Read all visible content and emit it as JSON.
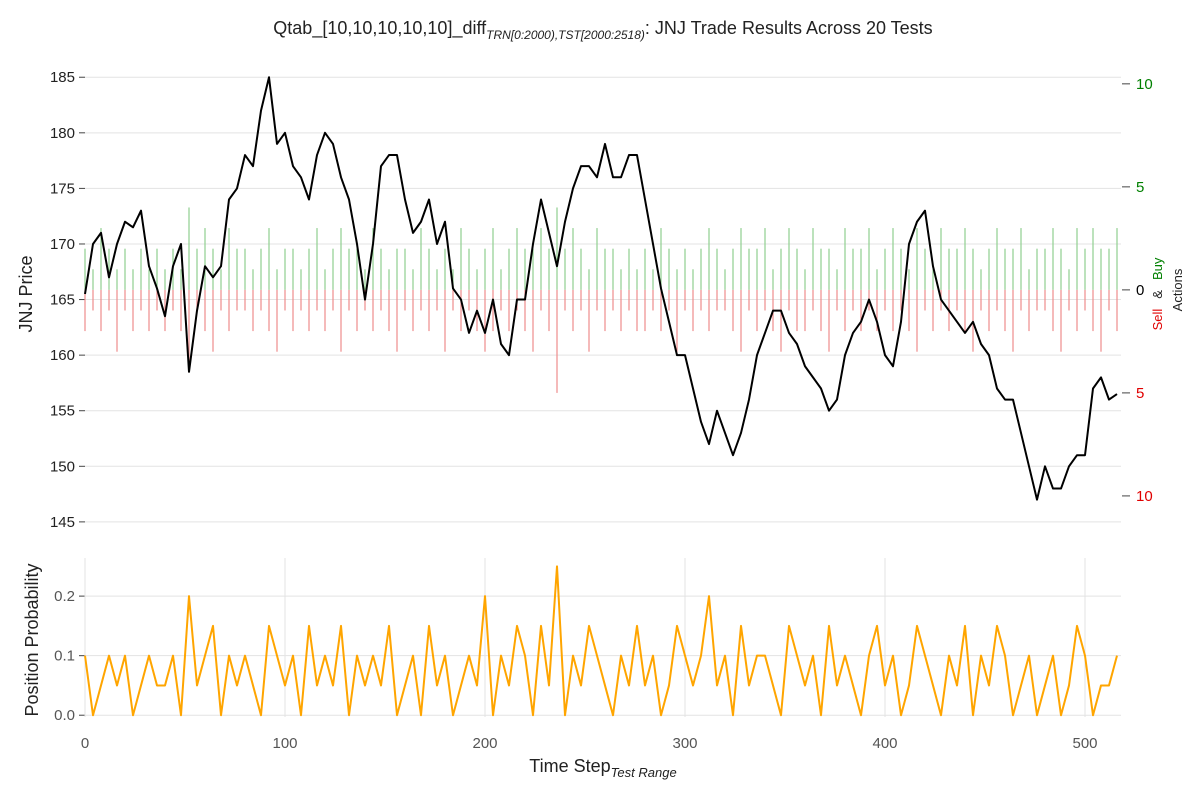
{
  "chart_data": [
    {
      "type": "line",
      "title": {
        "main": "Qtab_[10,10,10,10,10]_diff",
        "sub": "TRN[0:2000),TST[2000:2518)",
        "tail": ": JNJ Trade Results Across 20 Tests"
      },
      "ylabel": "JNJ Price",
      "y2label": {
        "sell": "Sell",
        "and": "&",
        "buy": "Buy",
        "actions": "Actions"
      },
      "xlim": [
        0,
        518
      ],
      "ylim": [
        144,
        187
      ],
      "yticks": [
        145,
        150,
        155,
        160,
        165,
        170,
        175,
        180,
        185
      ],
      "y2lim": [
        -11.8,
        11.4
      ],
      "y2ticks": [
        {
          "value": -10,
          "label": "10"
        },
        {
          "value": -5,
          "label": "5"
        },
        0,
        5,
        10
      ],
      "y2tick_colors": [
        "#e00000",
        "#e00000",
        "#000000",
        "#008000",
        "#008000"
      ],
      "grid": true,
      "x": [
        0,
        4,
        8,
        12,
        16,
        20,
        24,
        28,
        32,
        36,
        40,
        44,
        48,
        52,
        56,
        60,
        64,
        68,
        72,
        76,
        80,
        84,
        88,
        92,
        96,
        100,
        104,
        108,
        112,
        116,
        120,
        124,
        128,
        132,
        136,
        140,
        144,
        148,
        152,
        156,
        160,
        164,
        168,
        172,
        176,
        180,
        184,
        188,
        192,
        196,
        200,
        204,
        208,
        212,
        216,
        220,
        224,
        228,
        232,
        236,
        240,
        244,
        248,
        252,
        256,
        260,
        264,
        268,
        272,
        276,
        280,
        284,
        288,
        292,
        296,
        300,
        304,
        308,
        312,
        316,
        320,
        324,
        328,
        332,
        336,
        340,
        344,
        348,
        352,
        356,
        360,
        364,
        368,
        372,
        376,
        380,
        384,
        388,
        392,
        396,
        400,
        404,
        408,
        412,
        416,
        420,
        424,
        428,
        432,
        436,
        440,
        444,
        448,
        452,
        456,
        460,
        464,
        468,
        472,
        476,
        480,
        484,
        488,
        492,
        496,
        500,
        504,
        508,
        512,
        516
      ],
      "series": [
        {
          "color": "#000000",
          "values": [
            165.5,
            170,
            171,
            167,
            170,
            172,
            171.5,
            173,
            168,
            166,
            163.5,
            168,
            170,
            158.5,
            164,
            168,
            167,
            168,
            174,
            175,
            178,
            177,
            182,
            185,
            179,
            180,
            177,
            176,
            174,
            178,
            180,
            179,
            176,
            174,
            170,
            165,
            170,
            177,
            178,
            178,
            174,
            171,
            172,
            174,
            170,
            172,
            166,
            165,
            162,
            164,
            162,
            165,
            161,
            160,
            165,
            165,
            170,
            174,
            171,
            168,
            172,
            175,
            177,
            177,
            176,
            179,
            176,
            176,
            178,
            178,
            174,
            170,
            166,
            163,
            160,
            160,
            157,
            154,
            152,
            155,
            153,
            151,
            153,
            156,
            160,
            162,
            164,
            164,
            162,
            161,
            159,
            158,
            157,
            155,
            156,
            160,
            162,
            163,
            165,
            163,
            160,
            159,
            163,
            170,
            172,
            173,
            168,
            165,
            164,
            163,
            162,
            163,
            161,
            160,
            157,
            156,
            156,
            153,
            150,
            147,
            150,
            148,
            148,
            150,
            151,
            151,
            157,
            158,
            156,
            156.5
          ]
        },
        {
          "type": "bar",
          "axis": "y2",
          "color": "#8fcf8f",
          "values": [
            2,
            1,
            3,
            2,
            1,
            2,
            1,
            2,
            1,
            2,
            1,
            2,
            1,
            4,
            2,
            3,
            2,
            1,
            3,
            2,
            2,
            1,
            2,
            3,
            1,
            2,
            2,
            1,
            2,
            3,
            1,
            2,
            3,
            2,
            2,
            1,
            3,
            2,
            1,
            2,
            2,
            1,
            3,
            2,
            1,
            2,
            1,
            3,
            2,
            1,
            2,
            3,
            1,
            2,
            3,
            2,
            2,
            3,
            2,
            4,
            2,
            3,
            2,
            1,
            3,
            2,
            2,
            1,
            2,
            1,
            2,
            1,
            3,
            2,
            1,
            2,
            1,
            2,
            3,
            2,
            1,
            2,
            3,
            2,
            2,
            3,
            1,
            2,
            3,
            2,
            1,
            3,
            2,
            2,
            1,
            3,
            2,
            2,
            3,
            1,
            2,
            3,
            2,
            1,
            3,
            2,
            1,
            3,
            2,
            2,
            3,
            2,
            1,
            2,
            3,
            2,
            2,
            3,
            1,
            2,
            2,
            3,
            2,
            1,
            3,
            2,
            3,
            2,
            2,
            3
          ]
        },
        {
          "type": "bar",
          "axis": "y2",
          "color": "#ee8c8c",
          "values": [
            -2,
            -1,
            -2,
            -1,
            -3,
            -1,
            -2,
            -1,
            -2,
            -1,
            -2,
            -1,
            -2,
            -4,
            -1,
            -2,
            -3,
            -1,
            -2,
            -1,
            -1,
            -2,
            -1,
            -2,
            -3,
            -1,
            -2,
            -1,
            -2,
            -1,
            -2,
            -1,
            -3,
            -1,
            -2,
            -1,
            -2,
            -1,
            -2,
            -3,
            -1,
            -2,
            -1,
            -2,
            -1,
            -3,
            -1,
            -2,
            -1,
            -2,
            -3,
            -2,
            -1,
            -2,
            -1,
            -2,
            -3,
            -1,
            -2,
            -5,
            -1,
            -2,
            -1,
            -3,
            -1,
            -2,
            -1,
            -2,
            -1,
            -2,
            -2,
            -1,
            -2,
            -1,
            -3,
            -1,
            -2,
            -1,
            -2,
            -1,
            -1,
            -2,
            -3,
            -1,
            -2,
            -1,
            -2,
            -3,
            -1,
            -2,
            -2,
            -1,
            -2,
            -3,
            -1,
            -2,
            -1,
            -2,
            -1,
            -2,
            -1,
            -2,
            -1,
            -2,
            -3,
            -1,
            -2,
            -1,
            -2,
            -1,
            -2,
            -3,
            -1,
            -2,
            -1,
            -2,
            -3,
            -1,
            -2,
            -1,
            -1,
            -2,
            -3,
            -1,
            -2,
            -1,
            -2,
            -3,
            -1,
            -2
          ]
        }
      ]
    },
    {
      "type": "line",
      "xlabel": {
        "main": "Time Step",
        "sub": "Test Range"
      },
      "ylabel": "Position Probability",
      "xlim": [
        0,
        518
      ],
      "ylim": [
        -0.003,
        0.264
      ],
      "xticks": [
        0,
        100,
        200,
        300,
        400,
        500
      ],
      "yticks": [
        {
          "value": 0,
          "label": "0.0"
        },
        0.1,
        0.2
      ],
      "grid": true,
      "x": [
        0,
        4,
        8,
        12,
        16,
        20,
        24,
        28,
        32,
        36,
        40,
        44,
        48,
        52,
        56,
        60,
        64,
        68,
        72,
        76,
        80,
        84,
        88,
        92,
        96,
        100,
        104,
        108,
        112,
        116,
        120,
        124,
        128,
        132,
        136,
        140,
        144,
        148,
        152,
        156,
        160,
        164,
        168,
        172,
        176,
        180,
        184,
        188,
        192,
        196,
        200,
        204,
        208,
        212,
        216,
        220,
        224,
        228,
        232,
        236,
        240,
        244,
        248,
        252,
        256,
        260,
        264,
        268,
        272,
        276,
        280,
        284,
        288,
        292,
        296,
        300,
        304,
        308,
        312,
        316,
        320,
        324,
        328,
        332,
        336,
        340,
        344,
        348,
        352,
        356,
        360,
        364,
        368,
        372,
        376,
        380,
        384,
        388,
        392,
        396,
        400,
        404,
        408,
        412,
        416,
        420,
        424,
        428,
        432,
        436,
        440,
        444,
        448,
        452,
        456,
        460,
        464,
        468,
        472,
        476,
        480,
        484,
        488,
        492,
        496,
        500,
        504,
        508,
        512,
        516
      ],
      "series": [
        {
          "color": "#ffa500",
          "values": [
            0.1,
            0,
            0.05,
            0.1,
            0.05,
            0.1,
            0,
            0.05,
            0.1,
            0.05,
            0.05,
            0.1,
            0,
            0.2,
            0.05,
            0.1,
            0.15,
            0,
            0.1,
            0.05,
            0.1,
            0.05,
            0,
            0.15,
            0.1,
            0.05,
            0.1,
            0,
            0.15,
            0.05,
            0.1,
            0.05,
            0.15,
            0,
            0.1,
            0.05,
            0.1,
            0.05,
            0.15,
            0,
            0.05,
            0.1,
            0,
            0.15,
            0.05,
            0.1,
            0,
            0.05,
            0.1,
            0.05,
            0.2,
            0,
            0.1,
            0.05,
            0.15,
            0.1,
            0,
            0.15,
            0.05,
            0.25,
            0,
            0.1,
            0.05,
            0.15,
            0.1,
            0.05,
            0,
            0.1,
            0.05,
            0.15,
            0.05,
            0.1,
            0,
            0.05,
            0.15,
            0.1,
            0.05,
            0.1,
            0.2,
            0.05,
            0.1,
            0,
            0.15,
            0.05,
            0.1,
            0.1,
            0.05,
            0,
            0.15,
            0.1,
            0.05,
            0.1,
            0,
            0.15,
            0.05,
            0.1,
            0.05,
            0,
            0.1,
            0.15,
            0.05,
            0.1,
            0,
            0.05,
            0.15,
            0.1,
            0.05,
            0,
            0.1,
            0.05,
            0.15,
            0,
            0.1,
            0.05,
            0.15,
            0.1,
            0,
            0.05,
            0.1,
            0,
            0.05,
            0.1,
            0,
            0.05,
            0.15,
            0.1,
            0,
            0.05,
            0.05,
            0.1
          ]
        }
      ]
    }
  ]
}
